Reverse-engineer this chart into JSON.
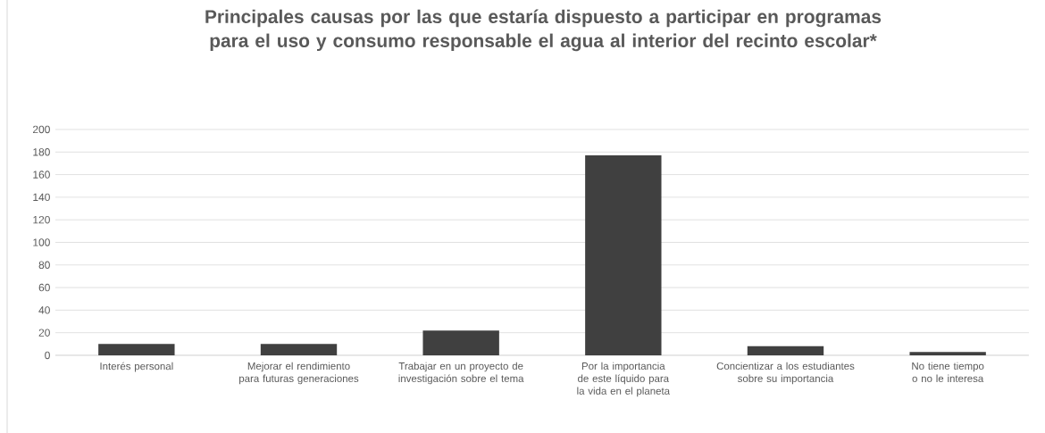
{
  "chart_data": {
    "type": "bar",
    "title": "Principales causas por las que estaría dispuesto a participar en programas para el uso y consumo responsable el agua al interior del recinto escolar*",
    "categories": [
      "Interés personal",
      "Mejorar el rendimiento para futuras generaciones",
      "Trabajar en un proyecto de investigación sobre el tema",
      "Por la importancia de este líquido para la vida en el planeta",
      "Concientizar a los estudiantes sobre su importancia",
      "No tiene tiempo o no le interesa"
    ],
    "values": [
      10,
      10,
      22,
      177,
      8,
      3
    ],
    "color": "#404040",
    "ylim": [
      0,
      200
    ],
    "yticks": [
      0,
      20,
      40,
      60,
      80,
      100,
      120,
      140,
      160,
      180,
      200
    ],
    "grid": "y"
  }
}
